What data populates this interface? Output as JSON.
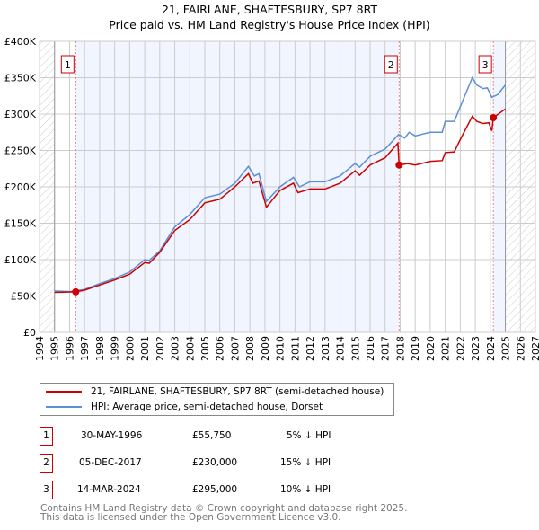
{
  "chart_data": {
    "type": "line",
    "title": "21, FAIRLANE, SHAFTESBURY, SP7 8RT",
    "subtitle": "Price paid vs. HM Land Registry's House Price Index (HPI)",
    "xlim": [
      1994,
      2027
    ],
    "ylim": [
      0,
      400000
    ],
    "x_ticks": [
      "1994",
      "1995",
      "1996",
      "1997",
      "1998",
      "1999",
      "2000",
      "2001",
      "2002",
      "2003",
      "2004",
      "2005",
      "2006",
      "2007",
      "2008",
      "2009",
      "2010",
      "2011",
      "2012",
      "2013",
      "2014",
      "2015",
      "2016",
      "2017",
      "2018",
      "2019",
      "2020",
      "2021",
      "2022",
      "2023",
      "2024",
      "2025",
      "2026",
      "2027"
    ],
    "y_ticks": [
      {
        "v": 0,
        "l": "£0"
      },
      {
        "v": 50000,
        "l": "£50K"
      },
      {
        "v": 100000,
        "l": "£100K"
      },
      {
        "v": 150000,
        "l": "£150K"
      },
      {
        "v": 200000,
        "l": "£200K"
      },
      {
        "v": 250000,
        "l": "£250K"
      },
      {
        "v": 300000,
        "l": "£300K"
      },
      {
        "v": 350000,
        "l": "£350K"
      },
      {
        "v": 400000,
        "l": "£400K"
      }
    ],
    "grid": true,
    "series": [
      {
        "name": "21, FAIRLANE, SHAFTESBURY, SP7 8RT (semi-detached house)",
        "color": "#cc0000",
        "x": [
          1995,
          1996.4,
          1997,
          1998,
          1999,
          2000,
          2001,
          2001.3,
          2002,
          2003,
          2004,
          2005,
          2006,
          2007,
          2007.9,
          2008.2,
          2008.6,
          2009.1,
          2010,
          2010.9,
          2011.2,
          2012,
          2013,
          2014,
          2015,
          2015.3,
          2016,
          2017,
          2017.85,
          2017.93,
          2018.5,
          2019,
          2020,
          2020.8,
          2021,
          2021.6,
          2022,
          2022.8,
          2023.1,
          2023.5,
          2023.9,
          2024.1,
          2024.2,
          2025
        ],
        "y": [
          55000,
          55750,
          58000,
          65000,
          72000,
          80000,
          96000,
          95000,
          110000,
          140000,
          155000,
          178000,
          183000,
          200000,
          218000,
          205000,
          208000,
          172000,
          195000,
          205000,
          192000,
          197000,
          197000,
          205000,
          222000,
          216000,
          230000,
          240000,
          260000,
          230000,
          232000,
          230000,
          235000,
          236000,
          247000,
          248000,
          265000,
          297000,
          290000,
          287000,
          288000,
          277000,
          295000,
          307000
        ]
      },
      {
        "name": "HPI: Average price, semi-detached house, Dorset",
        "color": "#5b8fd6",
        "x": [
          1995,
          1996,
          1997,
          1998,
          1999,
          2000,
          2001,
          2001.3,
          2002,
          2003,
          2004,
          2005,
          2006,
          2007,
          2007.9,
          2008.3,
          2008.6,
          2009.1,
          2010,
          2010.9,
          2011.3,
          2012,
          2013,
          2014,
          2015,
          2015.3,
          2016,
          2017,
          2017.9,
          2018.3,
          2018.6,
          2019,
          2020,
          2020.8,
          2021,
          2021.6,
          2022,
          2022.8,
          2023.1,
          2023.5,
          2023.8,
          2024.1,
          2024.5,
          2025
        ],
        "y": [
          57000,
          56000,
          59000,
          67000,
          74000,
          83000,
          100000,
          99000,
          112000,
          145000,
          162000,
          185000,
          190000,
          205000,
          228000,
          215000,
          218000,
          180000,
          200000,
          213000,
          200000,
          207000,
          207000,
          215000,
          232000,
          227000,
          242000,
          252000,
          272000,
          267000,
          275000,
          270000,
          275000,
          275000,
          290000,
          290000,
          310000,
          350000,
          340000,
          335000,
          336000,
          323000,
          327000,
          340000
        ]
      }
    ],
    "shaded_ranges": [
      [
        1996.41,
        2017.93
      ],
      [
        2024.2,
        2025
      ]
    ],
    "hatched_ranges": [
      [
        1994,
        1995
      ],
      [
        2025,
        2027
      ]
    ],
    "sales": [
      {
        "label": "1",
        "x": 1996.41,
        "y": 55750
      },
      {
        "label": "2",
        "x": 2017.93,
        "y": 230000
      },
      {
        "label": "3",
        "x": 2024.2,
        "y": 295000
      }
    ]
  },
  "legend": {
    "property": "21, FAIRLANE, SHAFTESBURY, SP7 8RT (semi-detached house)",
    "hpi": "HPI: Average price, semi-detached house, Dorset"
  },
  "transactions": [
    {
      "num": "1",
      "date": "30-MAY-1996",
      "price": "£55,750",
      "diff": "5% ↓ HPI"
    },
    {
      "num": "2",
      "date": "05-DEC-2017",
      "price": "£230,000",
      "diff": "15% ↓ HPI"
    },
    {
      "num": "3",
      "date": "14-MAR-2024",
      "price": "£295,000",
      "diff": "10% ↓ HPI"
    }
  ],
  "footer": {
    "line1": "Contains HM Land Registry data © Crown copyright and database right 2025.",
    "line2": "This data is licensed under the Open Government Licence v3.0."
  }
}
